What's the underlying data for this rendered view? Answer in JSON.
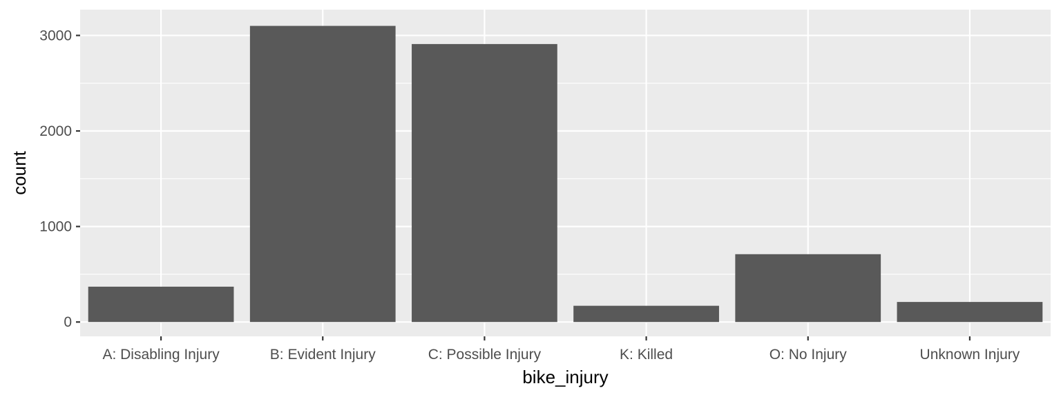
{
  "chart_data": {
    "type": "bar",
    "title": "",
    "xlabel": "bike_injury",
    "ylabel": "count",
    "categories": [
      "A: Disabling Injury",
      "B: Evident Injury",
      "C: Possible Injury",
      "K: Killed",
      "O: No Injury",
      "Unknown Injury"
    ],
    "values": [
      370,
      3100,
      2910,
      170,
      710,
      210
    ],
    "ylim": [
      -150,
      3270
    ],
    "yticks": [
      0,
      1000,
      2000,
      3000
    ],
    "grid": true,
    "legend": "none",
    "colors": {
      "panel": "#EBEBEB",
      "bar": "#595959",
      "grid": "#FFFFFF",
      "tick_text": "#4D4D4D"
    }
  }
}
